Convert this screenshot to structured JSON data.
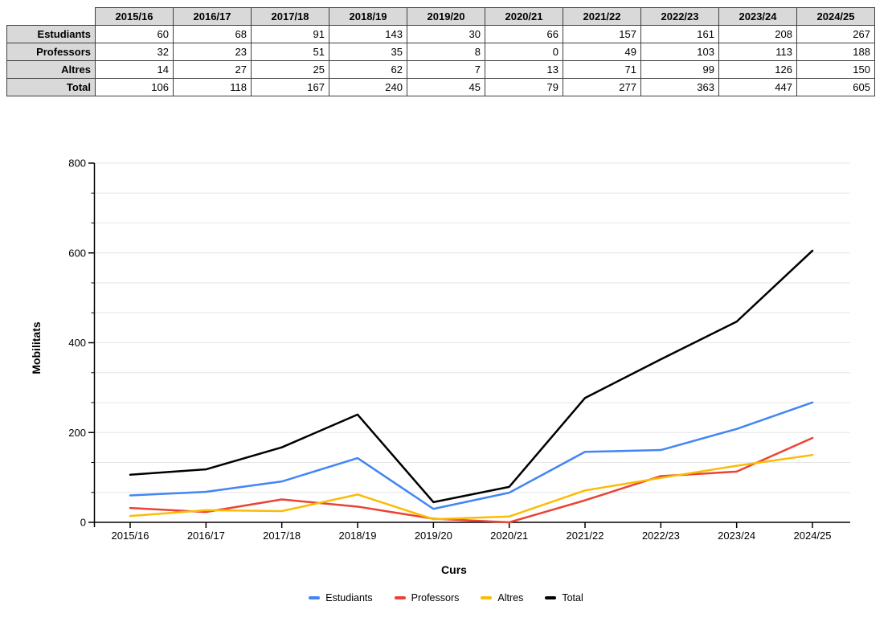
{
  "table": {
    "corner_label": "",
    "col_headers": [
      "2015/16",
      "2016/17",
      "2017/18",
      "2018/19",
      "2019/20",
      "2020/21",
      "2021/22",
      "2022/23",
      "2023/24",
      "2024/25"
    ],
    "rows": [
      {
        "label": "Estudiants",
        "values": [
          60,
          68,
          91,
          143,
          30,
          66,
          157,
          161,
          208,
          267
        ]
      },
      {
        "label": "Professors",
        "values": [
          32,
          23,
          51,
          35,
          8,
          0,
          49,
          103,
          113,
          188
        ]
      },
      {
        "label": "Altres",
        "values": [
          14,
          27,
          25,
          62,
          7,
          13,
          71,
          99,
          126,
          150
        ]
      },
      {
        "label": "Total",
        "values": [
          106,
          118,
          167,
          240,
          45,
          79,
          277,
          363,
          447,
          605
        ]
      }
    ]
  },
  "chart_data": {
    "type": "line",
    "categories": [
      "2015/16",
      "2016/17",
      "2017/18",
      "2018/19",
      "2019/20",
      "2020/21",
      "2021/22",
      "2022/23",
      "2023/24",
      "2024/25"
    ],
    "series": [
      {
        "name": "Estudiants",
        "color": "#4285F4",
        "values": [
          60,
          68,
          91,
          143,
          30,
          66,
          157,
          161,
          208,
          267
        ]
      },
      {
        "name": "Professors",
        "color": "#EA4335",
        "values": [
          32,
          23,
          51,
          35,
          8,
          0,
          49,
          103,
          113,
          188
        ]
      },
      {
        "name": "Altres",
        "color": "#FBBC04",
        "values": [
          14,
          27,
          25,
          62,
          7,
          13,
          71,
          99,
          126,
          150
        ]
      },
      {
        "name": "Total",
        "color": "#000000",
        "values": [
          106,
          118,
          167,
          240,
          45,
          79,
          277,
          363,
          447,
          605
        ]
      }
    ],
    "title": "",
    "xlabel": "Curs",
    "ylabel": "Mobilitats",
    "ylim": [
      0,
      800
    ],
    "y_major_ticks": [
      0,
      200,
      400,
      600,
      800
    ],
    "y_minor_divisions": 3,
    "grid": true,
    "gridline_color": "#e6e6e6",
    "axis_color": "#000000",
    "legend_position": "bottom"
  }
}
